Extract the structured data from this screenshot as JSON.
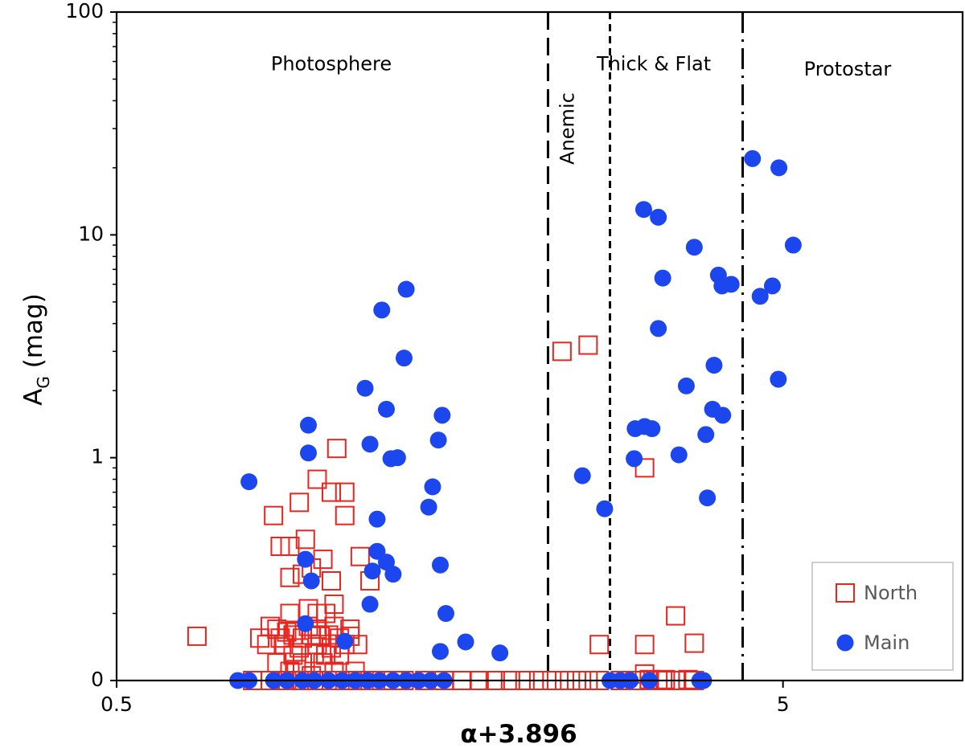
{
  "chart_data": {
    "type": "scatter",
    "xlabel": "α+3.896",
    "ylabel": "A",
    "ylabel_subscript": "G",
    "ylabel_unit": " (mag)",
    "x_scale": "log",
    "y_scale": "log (0 row drawn at bottom)",
    "xlim": [
      0.5,
      9.3
    ],
    "ylim_log": [
      0.1,
      100
    ],
    "x_ticks": [
      {
        "value": 0.5,
        "label": "0.5"
      },
      {
        "value": 5,
        "label": "5"
      }
    ],
    "y_ticks": [
      {
        "value": 100,
        "label": "100"
      },
      {
        "value": 10,
        "label": "10"
      },
      {
        "value": 1,
        "label": "1"
      },
      {
        "value": 0,
        "label": "0"
      }
    ],
    "regions": [
      {
        "label": "Photosphere",
        "x": 1.05,
        "y": 58
      },
      {
        "label": "Anemic",
        "x": 2.38,
        "y": 30,
        "rotated": true
      },
      {
        "label": "Thick & Flat",
        "x": 3.2,
        "y": 58
      },
      {
        "label": "Protostar",
        "x": 6.25,
        "y": 55
      }
    ],
    "boundaries": [
      {
        "x": 2.22,
        "style": "long-dash"
      },
      {
        "x": 2.75,
        "style": "short-dash"
      },
      {
        "x": 4.35,
        "style": "dash-dot"
      }
    ],
    "legend": [
      {
        "name": "North",
        "marker": "open-square",
        "color": "#e8251f"
      },
      {
        "name": "Main",
        "marker": "filled-circle",
        "color": "#1c46ee"
      }
    ],
    "series": [
      {
        "name": "North",
        "points": [
          [
            1.07,
            1.1
          ],
          [
            1.0,
            0.8
          ],
          [
            1.05,
            0.7
          ],
          [
            1.1,
            0.7
          ],
          [
            0.94,
            0.63
          ],
          [
            1.1,
            0.55
          ],
          [
            0.86,
            0.55
          ],
          [
            0.96,
            0.43
          ],
          [
            0.88,
            0.4
          ],
          [
            0.91,
            0.4
          ],
          [
            0.95,
            0.3
          ],
          [
            0.98,
            0.32
          ],
          [
            1.05,
            0.28
          ],
          [
            0.91,
            0.29
          ],
          [
            1.02,
            0.35
          ],
          [
            1.16,
            0.36
          ],
          [
            1.2,
            0.28
          ],
          [
            1.06,
            0.22
          ],
          [
            0.97,
            0.21
          ],
          [
            0.91,
            0.2
          ],
          [
            1.0,
            0.2
          ],
          [
            1.03,
            0.2
          ],
          [
            0.85,
            0.175
          ],
          [
            0.87,
            0.17
          ],
          [
            0.9,
            0.165
          ],
          [
            0.93,
            0.168
          ],
          [
            0.97,
            0.175
          ],
          [
            1.0,
            0.17
          ],
          [
            1.06,
            0.175
          ],
          [
            1.12,
            0.17
          ],
          [
            0.82,
            0.155
          ],
          [
            0.88,
            0.155
          ],
          [
            0.92,
            0.16
          ],
          [
            0.95,
            0.155
          ],
          [
            0.98,
            0.16
          ],
          [
            1.01,
            0.158
          ],
          [
            1.04,
            0.16
          ],
          [
            1.08,
            0.155
          ],
          [
            1.12,
            0.158
          ],
          [
            0.84,
            0.145
          ],
          [
            0.89,
            0.145
          ],
          [
            0.94,
            0.14
          ],
          [
            1.0,
            0.145
          ],
          [
            1.05,
            0.14
          ],
          [
            1.1,
            0.145
          ],
          [
            1.15,
            0.145
          ],
          [
            0.92,
            0.13
          ],
          [
            0.99,
            0.132
          ],
          [
            1.03,
            0.13
          ],
          [
            1.08,
            0.13
          ],
          [
            0.87,
            0.12
          ],
          [
            0.95,
            0.12
          ],
          [
            1.02,
            0.12
          ],
          [
            0.91,
            0.11
          ],
          [
            0.98,
            0.105
          ],
          [
            1.06,
            0.11
          ],
          [
            1.14,
            0.11
          ],
          [
            0.89,
            0.1
          ],
          [
            0.94,
            0.1
          ],
          [
            1.0,
            0.1
          ],
          [
            1.05,
            0.1
          ],
          [
            0.93,
            0.112
          ],
          [
            1.12,
            0.1
          ],
          [
            0.66,
            0.158
          ],
          [
            2.33,
            3.0
          ],
          [
            2.55,
            3.2
          ],
          [
            3.1,
            0.9
          ],
          [
            2.65,
            0.145
          ],
          [
            3.1,
            0.145
          ],
          [
            3.45,
            0.195
          ],
          [
            3.68,
            0.147
          ],
          [
            3.1,
            0.107
          ],
          [
            3.15,
            0.101
          ],
          [
            3.33,
            0.101
          ],
          [
            3.6,
            0.101
          ],
          [
            0.8,
            0
          ],
          [
            0.85,
            0
          ],
          [
            0.9,
            0
          ],
          [
            0.95,
            0
          ],
          [
            1.0,
            0
          ],
          [
            1.05,
            0
          ],
          [
            1.1,
            0
          ],
          [
            1.15,
            0
          ],
          [
            1.2,
            0
          ],
          [
            1.25,
            0
          ],
          [
            1.3,
            0
          ],
          [
            1.35,
            0
          ],
          [
            1.45,
            0
          ],
          [
            1.55,
            0
          ],
          [
            1.65,
            0
          ],
          [
            1.75,
            0
          ],
          [
            1.85,
            0
          ],
          [
            1.95,
            0
          ],
          [
            2.05,
            0
          ],
          [
            2.15,
            0
          ],
          [
            2.25,
            0
          ],
          [
            2.35,
            0
          ],
          [
            2.45,
            0
          ],
          [
            2.55,
            0
          ],
          [
            2.65,
            0
          ],
          [
            2.85,
            0
          ],
          [
            3.0,
            0
          ],
          [
            3.15,
            0
          ],
          [
            3.3,
            0
          ],
          [
            3.45,
            0
          ],
          [
            3.6,
            0
          ],
          [
            3.68,
            0
          ]
        ]
      },
      {
        "name": "Main",
        "points": [
          [
            1.36,
            5.7
          ],
          [
            1.25,
            4.6
          ],
          [
            1.35,
            2.8
          ],
          [
            1.18,
            2.05
          ],
          [
            1.27,
            1.65
          ],
          [
            0.97,
            1.4
          ],
          [
            1.2,
            1.15
          ],
          [
            0.97,
            1.05
          ],
          [
            1.32,
            1.0
          ],
          [
            1.29,
            0.99
          ],
          [
            0.79,
            0.78
          ],
          [
            1.54,
            1.55
          ],
          [
            1.52,
            1.2
          ],
          [
            1.49,
            0.74
          ],
          [
            1.47,
            0.6
          ],
          [
            1.23,
            0.53
          ],
          [
            2.5,
            0.83
          ],
          [
            2.7,
            0.59
          ],
          [
            0.96,
            0.35
          ],
          [
            0.98,
            0.28
          ],
          [
            1.23,
            0.38
          ],
          [
            1.27,
            0.34
          ],
          [
            1.21,
            0.31
          ],
          [
            1.3,
            0.3
          ],
          [
            1.53,
            0.33
          ],
          [
            1.56,
            0.2
          ],
          [
            1.2,
            0.22
          ],
          [
            0.96,
            0.18
          ],
          [
            1.1,
            0.15
          ],
          [
            1.53,
            0.135
          ],
          [
            1.67,
            0.149
          ],
          [
            1.88,
            0.133
          ],
          [
            3.09,
            13.0
          ],
          [
            3.25,
            12.0
          ],
          [
            3.68,
            8.8
          ],
          [
            3.3,
            6.4
          ],
          [
            4.0,
            6.6
          ],
          [
            4.05,
            5.9
          ],
          [
            4.18,
            6.0
          ],
          [
            4.62,
            5.3
          ],
          [
            3.25,
            3.8
          ],
          [
            3.94,
            2.6
          ],
          [
            3.58,
            2.1
          ],
          [
            3.92,
            1.65
          ],
          [
            4.06,
            1.55
          ],
          [
            3.83,
            1.27
          ],
          [
            3.0,
            1.35
          ],
          [
            3.1,
            1.38
          ],
          [
            3.18,
            1.35
          ],
          [
            2.99,
            0.99
          ],
          [
            3.49,
            1.03
          ],
          [
            3.85,
            0.66
          ],
          [
            4.5,
            22
          ],
          [
            4.93,
            20
          ],
          [
            5.18,
            9.0
          ],
          [
            4.82,
            5.9
          ],
          [
            4.92,
            2.25
          ],
          [
            0.76,
            0
          ],
          [
            0.79,
            0
          ],
          [
            0.86,
            0
          ],
          [
            0.9,
            0
          ],
          [
            0.95,
            0
          ],
          [
            0.99,
            0
          ],
          [
            1.04,
            0
          ],
          [
            1.09,
            0
          ],
          [
            1.14,
            0
          ],
          [
            1.19,
            0
          ],
          [
            1.24,
            0
          ],
          [
            1.3,
            0
          ],
          [
            1.36,
            0
          ],
          [
            1.42,
            0
          ],
          [
            1.48,
            0
          ],
          [
            1.55,
            0
          ],
          [
            2.75,
            0
          ],
          [
            2.85,
            0
          ],
          [
            2.95,
            0
          ],
          [
            3.15,
            0
          ],
          [
            3.75,
            0
          ],
          [
            3.8,
            0
          ]
        ]
      }
    ]
  }
}
